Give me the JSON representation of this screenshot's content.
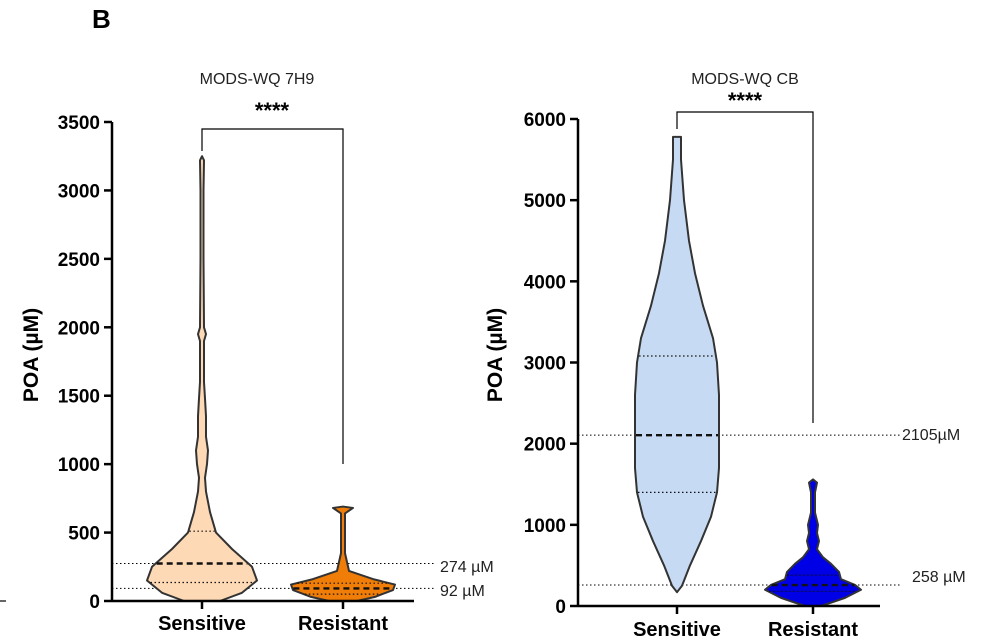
{
  "panel_label": "B",
  "reference_line_color": "#000000",
  "chart_data": [
    {
      "type": "violin",
      "title": "MODS-WQ 7H9",
      "ylabel": "POA (µM)",
      "xlabel": "",
      "ylim": [
        0,
        3500
      ],
      "yticks": [
        0,
        500,
        1000,
        1500,
        2000,
        2500,
        3000,
        3500
      ],
      "categories": [
        "Sensitive",
        "Resistant"
      ],
      "significance": "****",
      "series": [
        {
          "category": "Sensitive",
          "fill": "#fdd9b5",
          "median": 274,
          "q1": 135,
          "q3": 510,
          "density": [
            [
              0,
              18
            ],
            [
              60,
              40
            ],
            [
              150,
              55
            ],
            [
              250,
              50
            ],
            [
              380,
              30
            ],
            [
              500,
              14
            ],
            [
              650,
              8
            ],
            [
              800,
              4
            ],
            [
              900,
              3
            ],
            [
              1000,
              5
            ],
            [
              1100,
              6
            ],
            [
              1200,
              4
            ],
            [
              1350,
              4
            ],
            [
              1480,
              3
            ],
            [
              1600,
              2
            ],
            [
              1900,
              2
            ],
            [
              1950,
              4
            ],
            [
              2000,
              2
            ],
            [
              2500,
              1.5
            ],
            [
              3000,
              1.5
            ],
            [
              3220,
              2
            ],
            [
              3250,
              0
            ]
          ]
        },
        {
          "category": "Resistant",
          "fill": "#ef7d08",
          "median": 92,
          "q1": 50,
          "q3": 130,
          "density": [
            [
              0,
              14
            ],
            [
              30,
              32
            ],
            [
              80,
              50
            ],
            [
              120,
              52
            ],
            [
              160,
              30
            ],
            [
              220,
              6
            ],
            [
              350,
              2
            ],
            [
              500,
              2
            ],
            [
              640,
              2
            ],
            [
              680,
              10
            ],
            [
              690,
              0
            ]
          ]
        }
      ],
      "reference_lines": [
        {
          "value": 274,
          "label": "274 µM"
        },
        {
          "value": 92,
          "label": "92 µM"
        }
      ]
    },
    {
      "type": "violin",
      "title": "MODS-WQ CB",
      "ylabel": "POA (µM)",
      "xlabel": "",
      "ylim": [
        0,
        6000
      ],
      "yticks": [
        0,
        1000,
        2000,
        3000,
        4000,
        5000,
        6000
      ],
      "categories": [
        "Sensitive",
        "Resistant"
      ],
      "significance": "****",
      "series": [
        {
          "category": "Sensitive",
          "fill": "#c6dbf3",
          "median": 2105,
          "q1": 1400,
          "q3": 3080,
          "density": [
            [
              170,
              0
            ],
            [
              250,
              5
            ],
            [
              500,
              13
            ],
            [
              800,
              24
            ],
            [
              1100,
              34
            ],
            [
              1400,
              40
            ],
            [
              1700,
              42
            ],
            [
              2000,
              42
            ],
            [
              2300,
              42
            ],
            [
              2600,
              42
            ],
            [
              3000,
              40
            ],
            [
              3300,
              36
            ],
            [
              3700,
              26
            ],
            [
              4100,
              18
            ],
            [
              4500,
              12
            ],
            [
              5000,
              7
            ],
            [
              5500,
              4
            ],
            [
              5780,
              4
            ],
            [
              5780,
              0
            ]
          ]
        },
        {
          "category": "Resistant",
          "fill": "#0000e6",
          "median": 258,
          "q1": 180,
          "q3": 380,
          "density": [
            [
              0,
              8
            ],
            [
              100,
              32
            ],
            [
              200,
              48
            ],
            [
              260,
              42
            ],
            [
              330,
              28
            ],
            [
              420,
              26
            ],
            [
              520,
              18
            ],
            [
              600,
              10
            ],
            [
              700,
              4
            ],
            [
              800,
              6
            ],
            [
              900,
              4
            ],
            [
              1000,
              5
            ],
            [
              1150,
              2
            ],
            [
              1400,
              2
            ],
            [
              1520,
              4
            ],
            [
              1560,
              0
            ]
          ]
        }
      ],
      "reference_lines": [
        {
          "value": 2105,
          "label": "2105µM"
        },
        {
          "value": 258,
          "label": "258 µM"
        }
      ]
    }
  ]
}
